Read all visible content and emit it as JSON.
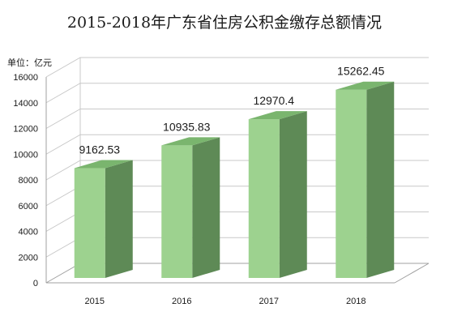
{
  "chart_data": {
    "type": "bar",
    "title": "2015-2018年广东省住房公积金缴存总额情况",
    "unit_label": "单位：亿元",
    "categories": [
      "2015",
      "2016",
      "2017",
      "2018"
    ],
    "values": [
      9162.53,
      10935.83,
      12970.4,
      15262.45
    ],
    "value_labels": [
      "9162.53",
      "10935.83",
      "12970.4",
      "15262.45"
    ],
    "ylim": [
      0,
      16000
    ],
    "yticks": [
      0,
      2000,
      4000,
      6000,
      8000,
      10000,
      12000,
      14000,
      16000
    ],
    "grid": true,
    "legend": "none",
    "style": "3d-column",
    "colors": {
      "front": "#9dd28f",
      "side": "#5e8a56",
      "top": "#7ab56e",
      "edge": "#6f9a66"
    }
  }
}
